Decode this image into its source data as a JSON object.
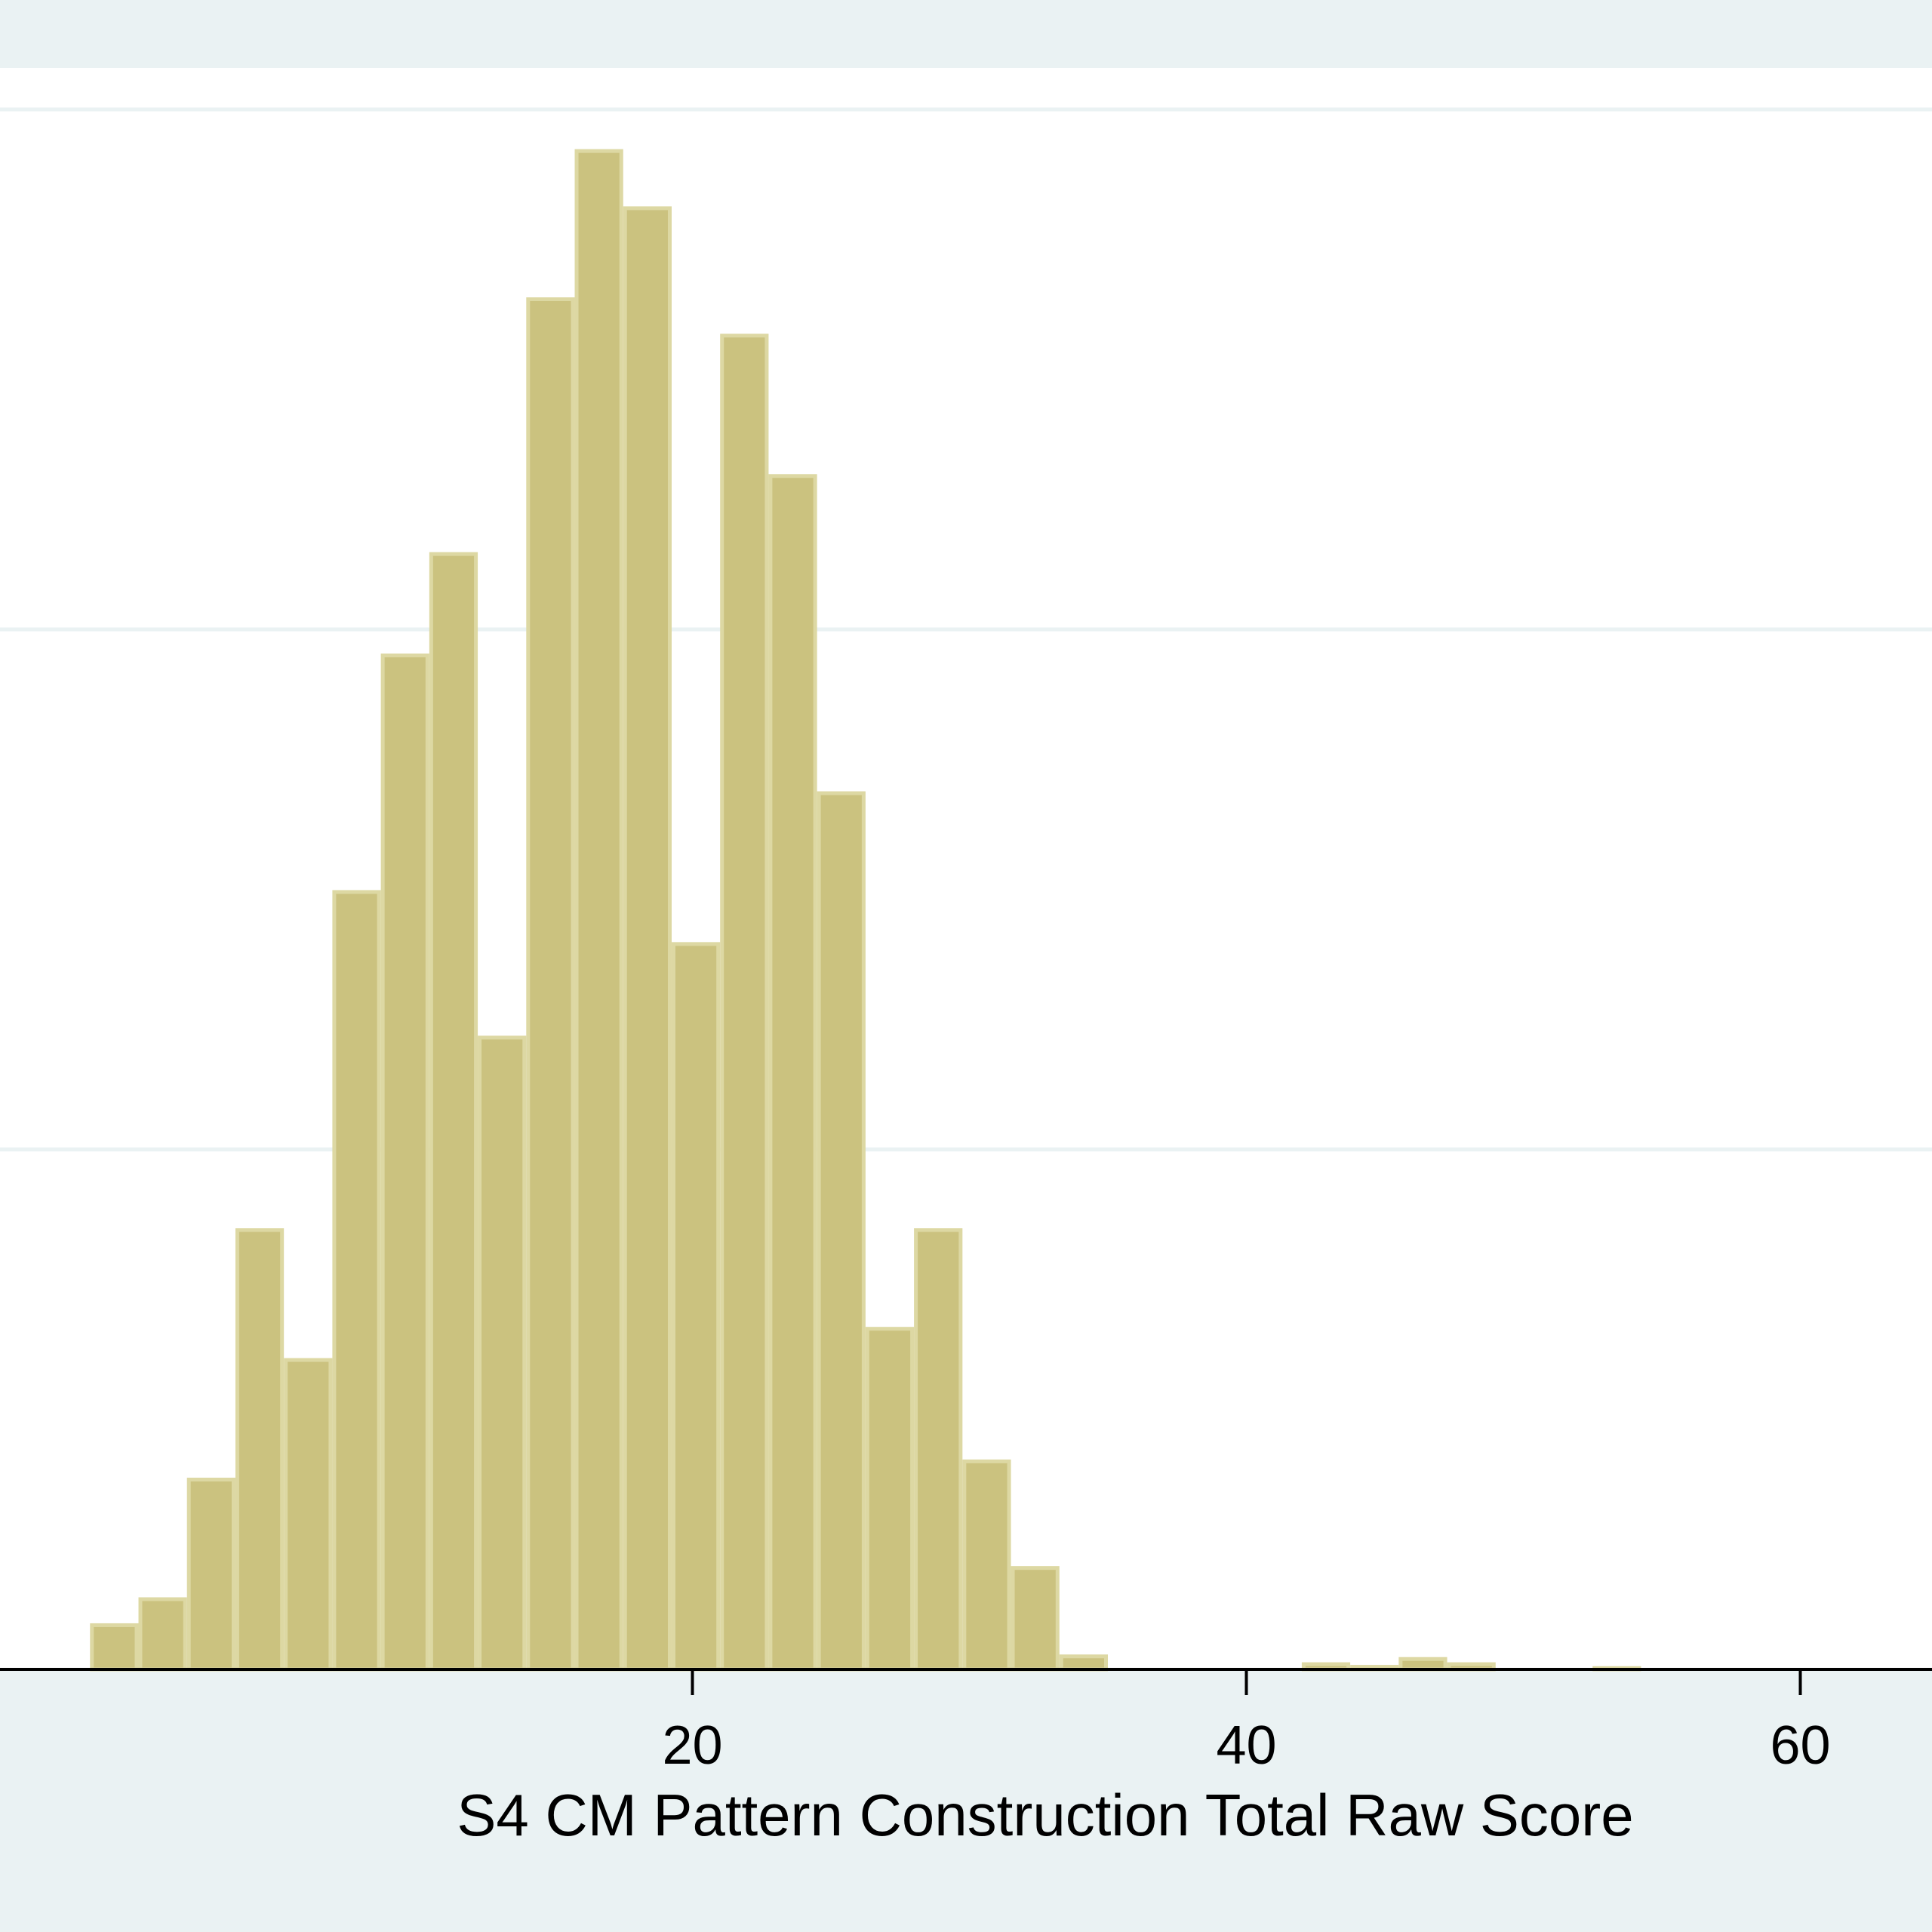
{
  "chart_data": {
    "type": "bar",
    "title": "",
    "xlabel": "S4 CM Pattern Construction Total Raw Score",
    "ylabel": "",
    "xlim": [
      0,
      70
    ],
    "ylim": [
      0,
      0.06
    ],
    "bin_width": 1.75,
    "x_ticks": [
      {
        "value": 20,
        "label": "20"
      },
      {
        "value": 40,
        "label": "40"
      },
      {
        "value": 60,
        "label": "60"
      }
    ],
    "y_gridlines": [
      0.02,
      0.04,
      0.06
    ],
    "grid": true,
    "bins": [
      {
        "x0": -1.75,
        "x1": 0,
        "value": 0.0017
      },
      {
        "x0": 0,
        "x1": 1.75,
        "value": 0.0027
      },
      {
        "x0": 1.75,
        "x1": 3.5,
        "value": 0.0073
      },
      {
        "x0": 3.5,
        "x1": 5.25,
        "value": 0.0169
      },
      {
        "x0": 5.25,
        "x1": 7.0,
        "value": 0.0119
      },
      {
        "x0": 7.0,
        "x1": 8.75,
        "value": 0.0299
      },
      {
        "x0": 8.75,
        "x1": 10.5,
        "value": 0.039
      },
      {
        "x0": 10.5,
        "x1": 12.25,
        "value": 0.0429
      },
      {
        "x0": 12.25,
        "x1": 14.0,
        "value": 0.0243
      },
      {
        "x0": 14.0,
        "x1": 15.75,
        "value": 0.0527
      },
      {
        "x0": 15.75,
        "x1": 17.5,
        "value": 0.0584
      },
      {
        "x0": 17.5,
        "x1": 19.25,
        "value": 0.0562
      },
      {
        "x0": 19.25,
        "x1": 21.0,
        "value": 0.0279
      },
      {
        "x0": 21.0,
        "x1": 22.75,
        "value": 0.0513
      },
      {
        "x0": 22.75,
        "x1": 24.5,
        "value": 0.0459
      },
      {
        "x0": 24.5,
        "x1": 26.25,
        "value": 0.0337
      },
      {
        "x0": 26.25,
        "x1": 28.0,
        "value": 0.0131
      },
      {
        "x0": 28.0,
        "x1": 29.75,
        "value": 0.0169
      },
      {
        "x0": 29.75,
        "x1": 31.5,
        "value": 0.008
      },
      {
        "x0": 31.5,
        "x1": 33.25,
        "value": 0.0039
      },
      {
        "x0": 33.25,
        "x1": 35.0,
        "value": 0.0005
      },
      {
        "x0": 42.0,
        "x1": 43.75,
        "value": 0.0002
      },
      {
        "x0": 43.75,
        "x1": 45.5,
        "value": 0.0001
      },
      {
        "x0": 45.5,
        "x1": 47.25,
        "value": 0.0004
      },
      {
        "x0": 47.25,
        "x1": 49.0,
        "value": 0.0002
      },
      {
        "x0": 52.5,
        "x1": 54.25,
        "value": 5e-05
      }
    ],
    "colors": {
      "bar_fill": "#cbc27f",
      "bar_outline": "#ddd8a3",
      "plot_background": "#ffffff",
      "outer_background": "#eaf2f3",
      "gridline": "#eaf2f3",
      "axis_line": "#000000"
    }
  }
}
